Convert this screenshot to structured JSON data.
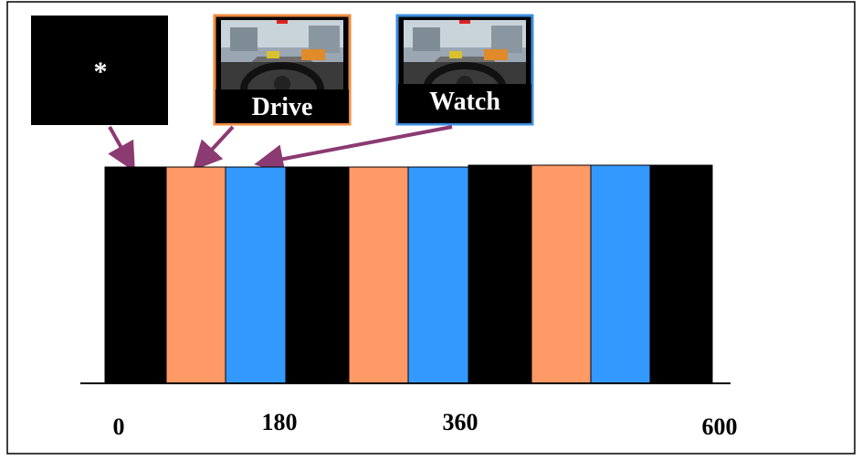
{
  "panels": {
    "fixation": "*",
    "drive": "Drive",
    "watch": "Watch"
  },
  "timeline": {
    "ticks": [
      "0",
      "180",
      "360",
      "600"
    ]
  }
}
